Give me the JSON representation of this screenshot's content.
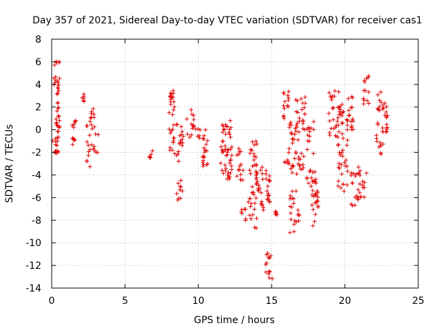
{
  "chart_data": {
    "type": "scatter",
    "title": "Day 357 of 2021, Sidereal Day-to-day VTEC variation (SDTVAR) for receiver cas1",
    "xlabel": "GPS time / hours",
    "ylabel": "SDTVAR / TECUs",
    "xlim": [
      0,
      25
    ],
    "ylim": [
      -14,
      8
    ],
    "x_ticks": [
      0,
      5,
      10,
      15,
      20,
      25
    ],
    "y_ticks": [
      -14,
      -12,
      -10,
      -8,
      -6,
      -4,
      -2,
      0,
      2,
      4,
      6,
      8
    ],
    "grid": true,
    "marker": "plus",
    "marker_color": "#e00000",
    "clusters": [
      {
        "x": [
          0.0,
          0.4
        ],
        "y": [
          -2.4,
          -0.8
        ]
      },
      {
        "x": [
          0.1,
          0.55
        ],
        "y": [
          2.8,
          6.5
        ]
      },
      {
        "x": [
          0.3,
          0.55
        ],
        "y": [
          -2.0,
          2.6
        ]
      },
      {
        "x": [
          1.4,
          1.7
        ],
        "y": [
          -1.5,
          -0.7
        ]
      },
      {
        "x": [
          1.4,
          1.7
        ],
        "y": [
          0.2,
          0.8
        ]
      },
      {
        "x": [
          2.0,
          2.3
        ],
        "y": [
          2.4,
          3.2
        ]
      },
      {
        "x": [
          2.3,
          3.2
        ],
        "y": [
          -3.3,
          0.8
        ]
      },
      {
        "x": [
          2.6,
          3.0
        ],
        "y": [
          0.2,
          1.9
        ]
      },
      {
        "x": [
          6.5,
          6.9
        ],
        "y": [
          -2.8,
          -1.8
        ]
      },
      {
        "x": [
          8.0,
          8.4
        ],
        "y": [
          -2.3,
          3.5
        ]
      },
      {
        "x": [
          8.5,
          9.0
        ],
        "y": [
          -6.3,
          -4.3
        ]
      },
      {
        "x": [
          8.5,
          9.0
        ],
        "y": [
          -2.8,
          0.5
        ]
      },
      {
        "x": [
          9.2,
          9.7
        ],
        "y": [
          -0.8,
          1.8
        ]
      },
      {
        "x": [
          9.8,
          10.2
        ],
        "y": [
          -0.8,
          0.2
        ]
      },
      {
        "x": [
          10.3,
          10.7
        ],
        "y": [
          -3.4,
          0.3
        ]
      },
      {
        "x": [
          11.5,
          11.9
        ],
        "y": [
          -4.0,
          0.6
        ]
      },
      {
        "x": [
          11.9,
          12.3
        ],
        "y": [
          -4.4,
          1.2
        ]
      },
      {
        "x": [
          12.6,
          13.1
        ],
        "y": [
          -4.5,
          -1.6
        ]
      },
      {
        "x": [
          12.9,
          13.3
        ],
        "y": [
          -8.2,
          -6.8
        ]
      },
      {
        "x": [
          13.4,
          14.0
        ],
        "y": [
          -8.8,
          -1.0
        ]
      },
      {
        "x": [
          13.9,
          14.4
        ],
        "y": [
          -6.8,
          -3.0
        ]
      },
      {
        "x": [
          14.3,
          14.9
        ],
        "y": [
          -7.2,
          -3.5
        ]
      },
      {
        "x": [
          14.6,
          15.1
        ],
        "y": [
          -13.2,
          -10.5
        ]
      },
      {
        "x": [
          15.2,
          15.4
        ],
        "y": [
          -7.6,
          -7.0
        ]
      },
      {
        "x": [
          15.8,
          16.4
        ],
        "y": [
          0.0,
          3.6
        ]
      },
      {
        "x": [
          15.9,
          16.3
        ],
        "y": [
          -3.0,
          -1.5
        ]
      },
      {
        "x": [
          16.2,
          16.9
        ],
        "y": [
          -9.2,
          -5.0
        ]
      },
      {
        "x": [
          16.3,
          16.9
        ],
        "y": [
          -4.0,
          0.8
        ]
      },
      {
        "x": [
          16.6,
          17.3
        ],
        "y": [
          0.0,
          3.0
        ]
      },
      {
        "x": [
          16.6,
          17.2
        ],
        "y": [
          -3.6,
          -2.0
        ]
      },
      {
        "x": [
          17.1,
          17.9
        ],
        "y": [
          -2.5,
          1.5
        ]
      },
      {
        "x": [
          17.4,
          18.0
        ],
        "y": [
          -5.5,
          -3.4
        ]
      },
      {
        "x": [
          17.7,
          18.2
        ],
        "y": [
          -8.5,
          -3.5
        ]
      },
      {
        "x": [
          18.9,
          19.6
        ],
        "y": [
          -0.9,
          3.6
        ]
      },
      {
        "x": [
          19.4,
          19.9
        ],
        "y": [
          0.5,
          2.5
        ]
      },
      {
        "x": [
          19.5,
          20.2
        ],
        "y": [
          -5.5,
          2.4
        ]
      },
      {
        "x": [
          20.2,
          20.6
        ],
        "y": [
          0.0,
          3.0
        ]
      },
      {
        "x": [
          20.4,
          21.0
        ],
        "y": [
          -6.8,
          -3.0
        ]
      },
      {
        "x": [
          21.0,
          21.5
        ],
        "y": [
          -6.0,
          -3.5
        ]
      },
      {
        "x": [
          21.2,
          21.7
        ],
        "y": [
          2.2,
          4.8
        ]
      },
      {
        "x": [
          22.1,
          22.6
        ],
        "y": [
          -2.4,
          0.6
        ]
      },
      {
        "x": [
          22.2,
          22.6
        ],
        "y": [
          1.5,
          3.4
        ]
      },
      {
        "x": [
          22.6,
          22.9
        ],
        "y": [
          1.0,
          2.5
        ]
      },
      {
        "x": [
          22.7,
          22.9
        ],
        "y": [
          -0.2,
          0.8
        ]
      }
    ]
  }
}
